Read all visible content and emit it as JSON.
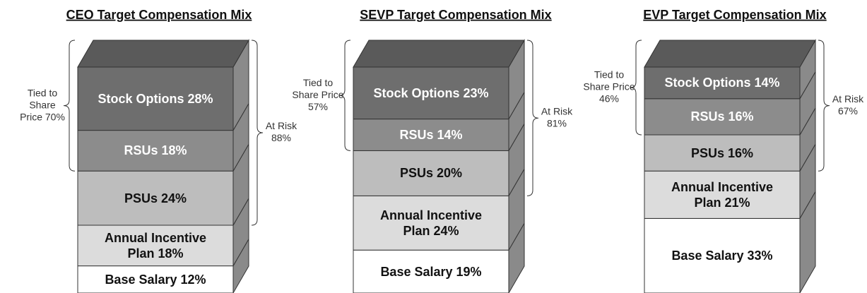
{
  "chart_data": [
    {
      "type": "bar",
      "stacked": true,
      "title": "CEO Target Compensation Mix",
      "ylim": [
        0,
        100
      ],
      "series": [
        {
          "name": "Base Salary",
          "color": "#ffffff",
          "values": [
            12
          ],
          "value_labels": [
            "12%"
          ]
        },
        {
          "name": "Annual Incentive Plan",
          "color": "#dcdcdc",
          "values": [
            18
          ],
          "value_labels": [
            "18%"
          ]
        },
        {
          "name": "PSUs",
          "color": "#bdbdbd",
          "values": [
            24
          ],
          "value_labels": [
            "24%"
          ]
        },
        {
          "name": "RSUs",
          "color": "#8c8c8c",
          "values": [
            18
          ],
          "value_labels": [
            "18%"
          ]
        },
        {
          "name": "Stock Options",
          "color": "#6e6e6e",
          "values": [
            28
          ],
          "value_labels": [
            "28%"
          ]
        }
      ],
      "annotations": [
        {
          "side": "left",
          "lines": [
            "Tied to",
            "Share",
            "Price 70%"
          ]
        },
        {
          "side": "right",
          "lines": [
            "At Risk",
            "88%"
          ]
        }
      ]
    },
    {
      "type": "bar",
      "stacked": true,
      "title": "SEVP Target Compensation Mix",
      "ylim": [
        0,
        100
      ],
      "series": [
        {
          "name": "Base Salary",
          "color": "#ffffff",
          "values": [
            19
          ],
          "value_labels": [
            "19%"
          ]
        },
        {
          "name": "Annual Incentive Plan",
          "color": "#dcdcdc",
          "values": [
            24
          ],
          "value_labels": [
            "24%"
          ]
        },
        {
          "name": "PSUs",
          "color": "#bdbdbd",
          "values": [
            20
          ],
          "value_labels": [
            "20%"
          ]
        },
        {
          "name": "RSUs",
          "color": "#8c8c8c",
          "values": [
            14
          ],
          "value_labels": [
            "14%"
          ]
        },
        {
          "name": "Stock Options",
          "color": "#6e6e6e",
          "values": [
            23
          ],
          "value_labels": [
            "23%"
          ]
        }
      ],
      "annotations": [
        {
          "side": "left",
          "lines": [
            "Tied to",
            "Share Price",
            "57%"
          ]
        },
        {
          "side": "right",
          "lines": [
            "At Risk",
            "81%"
          ]
        }
      ]
    },
    {
      "type": "bar",
      "stacked": true,
      "title": "EVP Target Compensation Mix",
      "ylim": [
        0,
        100
      ],
      "series": [
        {
          "name": "Base Salary",
          "color": "#ffffff",
          "values": [
            33
          ],
          "value_labels": [
            "33%"
          ]
        },
        {
          "name": "Annual Incentive Plan",
          "color": "#dcdcdc",
          "values": [
            21
          ],
          "value_labels": [
            "21%"
          ]
        },
        {
          "name": "PSUs",
          "color": "#bdbdbd",
          "values": [
            16
          ],
          "value_labels": [
            "16%"
          ]
        },
        {
          "name": "RSUs",
          "color": "#8c8c8c",
          "values": [
            16
          ],
          "value_labels": [
            "16%"
          ]
        },
        {
          "name": "Stock Options",
          "color": "#6e6e6e",
          "values": [
            14
          ],
          "value_labels": [
            "14%"
          ]
        }
      ],
      "annotations": [
        {
          "side": "left",
          "lines": [
            "Tied to",
            "Share Price",
            "46%"
          ]
        },
        {
          "side": "right",
          "lines": [
            "At Risk",
            "67%"
          ]
        }
      ]
    }
  ]
}
